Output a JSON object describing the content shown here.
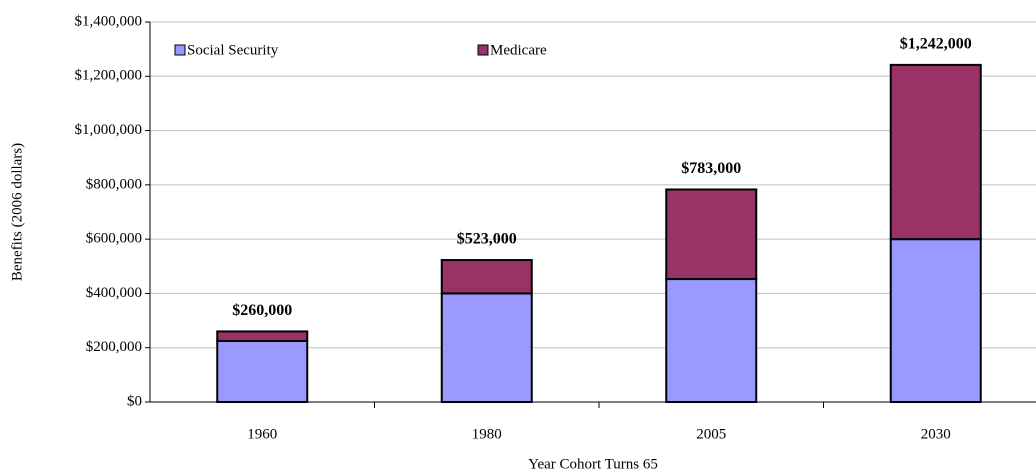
{
  "chart_data": {
    "type": "stacked_bar",
    "x_label": "Year Cohort Turns 65",
    "y_label": "Benefits (2006 dollars)",
    "categories": [
      "1960",
      "1980",
      "2005",
      "2030"
    ],
    "series": [
      {
        "name": "Social Security",
        "color": "#9999ff",
        "values": [
          225000,
          400000,
          453000,
          600000
        ]
      },
      {
        "name": "Medicare",
        "color": "#993366",
        "values": [
          35000,
          123000,
          330000,
          642000
        ]
      }
    ],
    "totals": [
      260000,
      523000,
      783000,
      1242000
    ],
    "total_labels": [
      "$260,000",
      "$523,000",
      "$783,000",
      "$1,242,000"
    ],
    "ylim": [
      0,
      1400000
    ],
    "yticks": [
      {
        "value": 0,
        "label": "$0"
      },
      {
        "value": 200000,
        "label": "$200,000"
      },
      {
        "value": 400000,
        "label": "$400,000"
      },
      {
        "value": 600000,
        "label": "$600,000"
      },
      {
        "value": 800000,
        "label": "$800,000"
      },
      {
        "value": 1000000,
        "label": "$1,000,000"
      },
      {
        "value": 1200000,
        "label": "$1,200,000"
      },
      {
        "value": 1400000,
        "label": "$1,400,000"
      }
    ],
    "grid": true,
    "legend": "top"
  }
}
